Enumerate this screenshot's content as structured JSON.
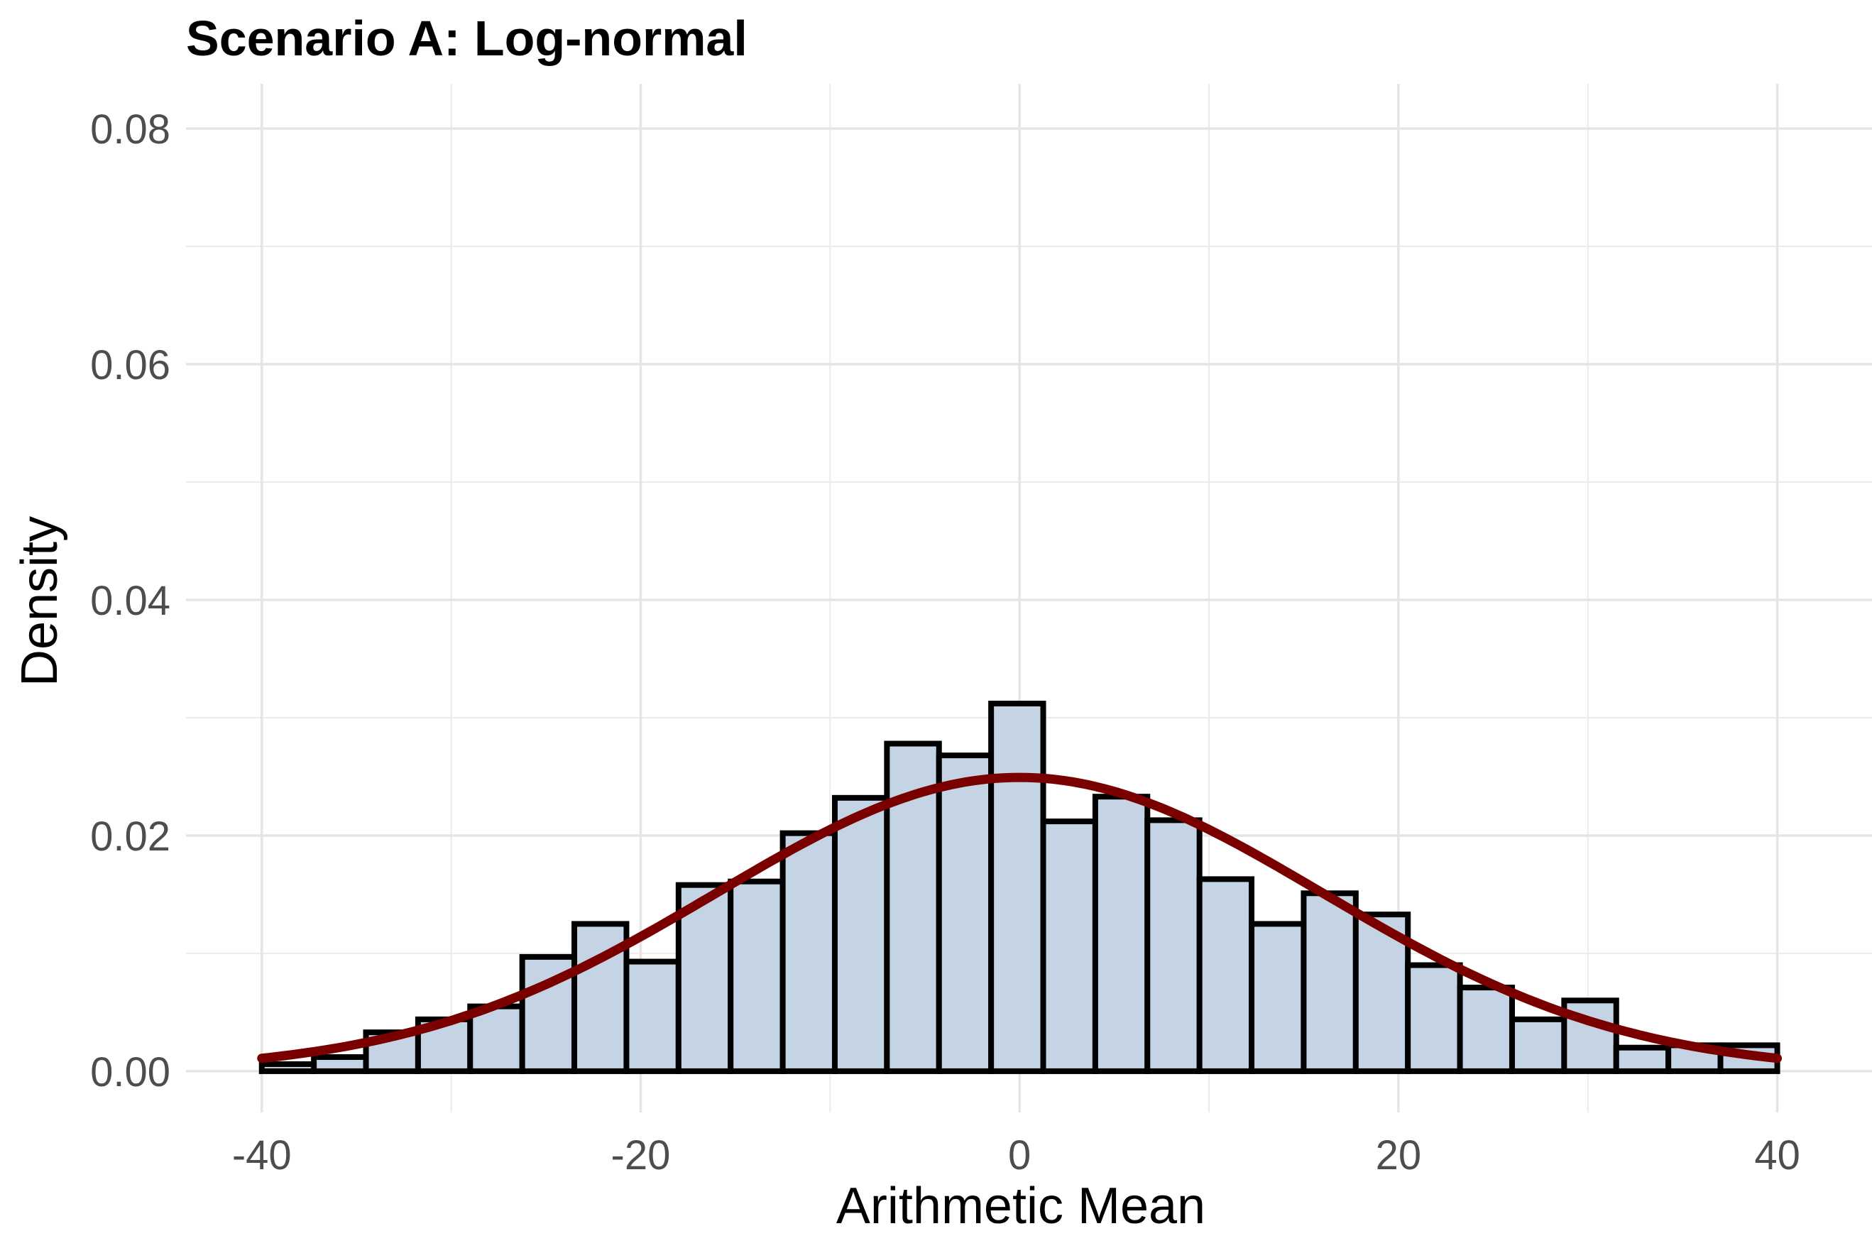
{
  "chart_data": {
    "type": "histogram",
    "title": "Scenario A: Log-normal",
    "xlabel": "Arithmetic Mean",
    "ylabel": "Density",
    "xlim": [
      -44,
      45
    ],
    "ylim": [
      -0.0035,
      0.0838
    ],
    "x_ticks": [
      -40,
      -20,
      0,
      20,
      40
    ],
    "x_tick_labels": [
      "-40",
      "-20",
      "0",
      "20",
      "40"
    ],
    "y_ticks": [
      0,
      0.02,
      0.04,
      0.06,
      0.08
    ],
    "y_tick_labels": [
      "0.00",
      "0.02",
      "0.04",
      "0.06",
      "0.08"
    ],
    "grid": true,
    "legend": "none",
    "bins": {
      "edges": [
        -40.0,
        -37.25,
        -34.5,
        -31.75,
        -29.0,
        -26.25,
        -23.5,
        -20.75,
        -18.0,
        -15.25,
        -12.5,
        -9.75,
        -7.0,
        -4.25,
        -1.5,
        1.25,
        4.0,
        6.75,
        9.5,
        12.25,
        15.0,
        17.75,
        20.5,
        23.25,
        26.0,
        28.75,
        31.5,
        34.25,
        37.0,
        40.0
      ],
      "density": [
        0.0006,
        0.0012,
        0.0033,
        0.0044,
        0.0055,
        0.0097,
        0.0125,
        0.0093,
        0.0158,
        0.0161,
        0.0202,
        0.0232,
        0.0278,
        0.0268,
        0.0312,
        0.0212,
        0.0233,
        0.0213,
        0.0163,
        0.0125,
        0.0151,
        0.0133,
        0.009,
        0.0071,
        0.0044,
        0.006,
        0.002,
        0.0022,
        0.0022
      ]
    },
    "bar_fill": "#c4d4e4",
    "bar_edge": "#000000",
    "curve": {
      "name": "Normal density",
      "mean": 0,
      "sd": 16,
      "color": "#7a0000",
      "x_range": [
        -40,
        40
      ]
    }
  }
}
